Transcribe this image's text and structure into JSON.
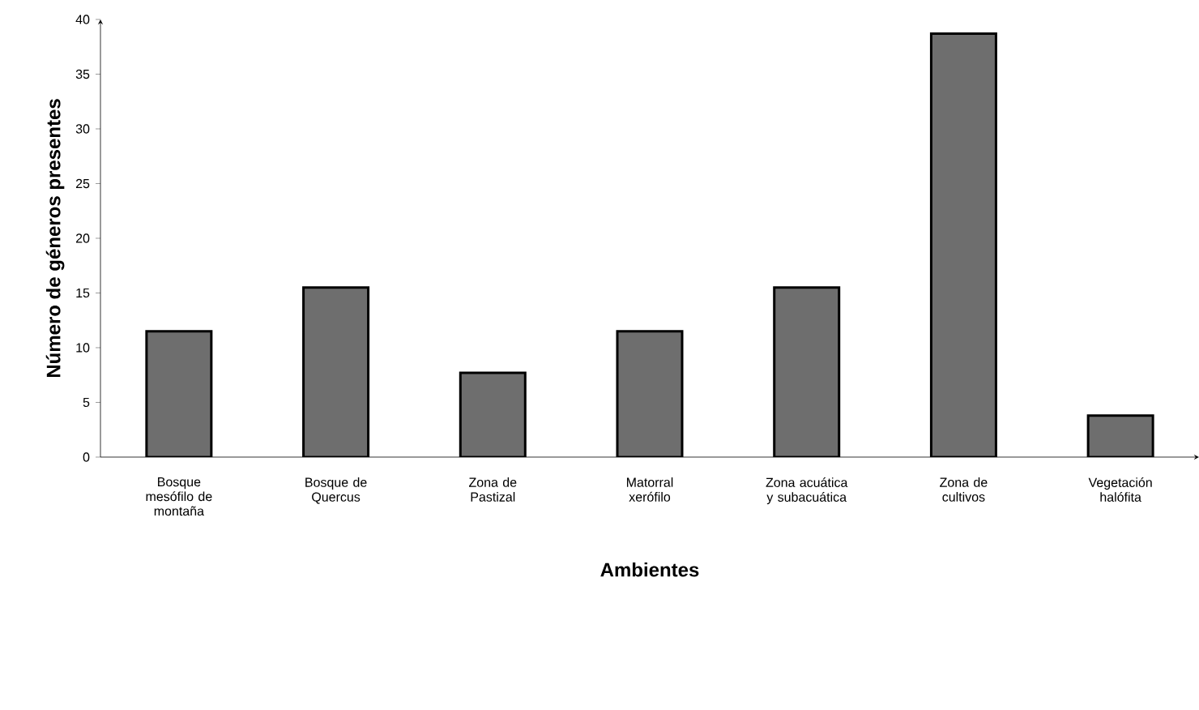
{
  "chart_data": {
    "type": "bar",
    "xlabel": "Ambientes",
    "ylabel": "Número de géneros presentes",
    "categories": [
      "Bosque mesófilo de montaña",
      "Bosque de Quercus",
      "Zona de Pastizal",
      "Matorral xerófilo",
      "Zona acuática y subacuática",
      "Zona de cultivos",
      "Vegetación halófita"
    ],
    "values": [
      11.5,
      15.5,
      7.7,
      11.5,
      15.5,
      38.7,
      3.8
    ],
    "color": "#6e6e6e",
    "ylim": [
      0,
      40
    ],
    "yticks": [
      0,
      5,
      10,
      15,
      20,
      25,
      30,
      35,
      40
    ],
    "grid": false
  }
}
